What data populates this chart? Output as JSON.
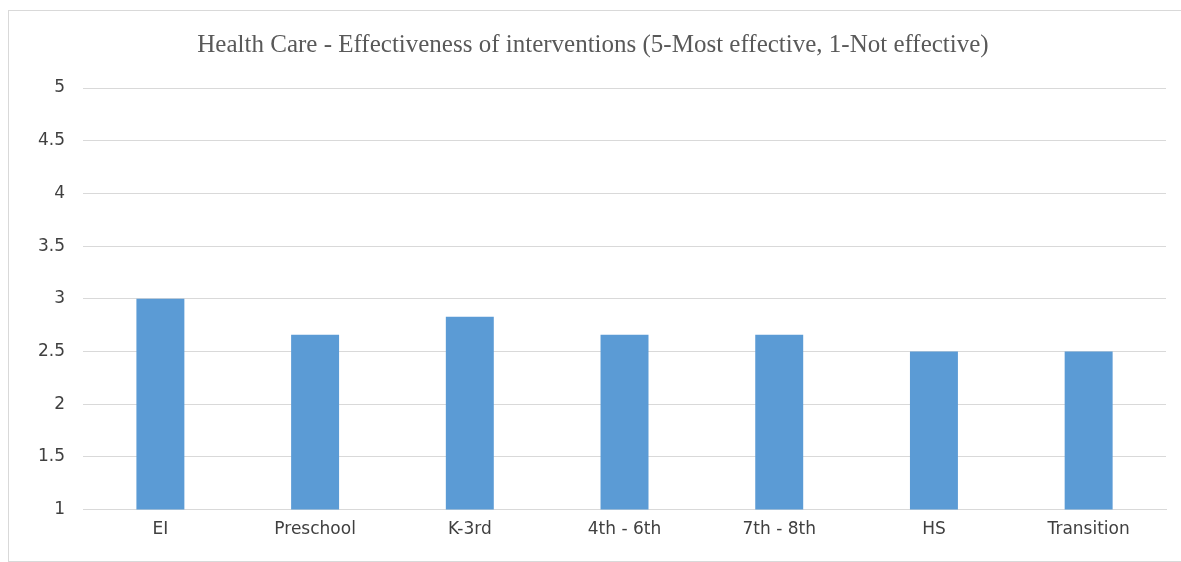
{
  "chart_data": {
    "type": "bar",
    "title": "Health Care - Effectiveness of interventions (5-Most effective, 1-Not effective)",
    "categories": [
      "EI",
      "Preschool",
      "K-3rd",
      "4th - 6th",
      "7th - 8th",
      "HS",
      "Transition"
    ],
    "values": [
      3,
      2.66,
      2.83,
      2.66,
      2.66,
      2.5,
      2.5
    ],
    "color": "#5b9bd5",
    "ylim": [
      1,
      5
    ],
    "yticks": [
      1,
      1.5,
      2,
      2.5,
      3,
      3.5,
      4,
      4.5,
      5
    ],
    "grid": "y",
    "legend": false
  }
}
